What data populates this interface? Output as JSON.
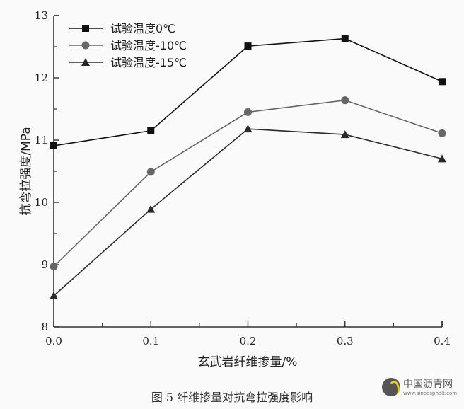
{
  "chart_data": {
    "type": "line",
    "title": "",
    "xlabel": "玄武岩纤维掺量/%",
    "ylabel": "抗弯拉强度/MPa",
    "x": [
      0.0,
      0.1,
      0.2,
      0.3,
      0.4
    ],
    "x_tick_labels": [
      "0.0",
      "0.1",
      "0.2",
      "0.3",
      "0.4"
    ],
    "y_tick_labels": [
      "8",
      "9",
      "10",
      "11",
      "12",
      "13"
    ],
    "xlim": [
      0.0,
      0.4
    ],
    "ylim": [
      8,
      13
    ],
    "grid": false,
    "legend_position": "upper left",
    "series": [
      {
        "name": "试验温度0℃",
        "marker": "square",
        "color": "#111111",
        "values": [
          10.91,
          11.15,
          12.51,
          12.63,
          11.94
        ]
      },
      {
        "name": "试验温度-10℃",
        "marker": "circle",
        "color": "#666666",
        "values": [
          8.97,
          10.49,
          11.45,
          11.64,
          11.11
        ]
      },
      {
        "name": "试验温度-15℃",
        "marker": "triangle",
        "color": "#2a2a2a",
        "values": [
          8.5,
          9.89,
          11.18,
          11.09,
          10.7
        ]
      }
    ]
  },
  "caption": "图 5   纤维掺量对抗弯拉强度影响",
  "watermark": {
    "name": "中国沥青网",
    "url": "www.sinoasphalt.com"
  }
}
